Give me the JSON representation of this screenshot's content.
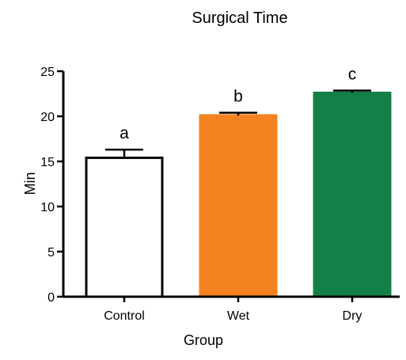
{
  "chart_data": {
    "type": "bar",
    "title": "Surgical Time",
    "xlabel": "Group",
    "ylabel": "Min",
    "categories": [
      "Control",
      "Wet",
      "Dry"
    ],
    "values": [
      15.4,
      20.1,
      22.6
    ],
    "errors": [
      0.9,
      0.3,
      0.25
    ],
    "significance_labels": [
      "a",
      "b",
      "c"
    ],
    "bar_fill_colors": [
      "#ffffff",
      "#f58220",
      "#148048"
    ],
    "bar_stroke_colors": [
      "#000000",
      "#f58220",
      "#148048"
    ],
    "ylim": [
      0,
      25
    ],
    "yticks": [
      "0",
      "5",
      "10",
      "15",
      "20",
      "25"
    ],
    "grid": false,
    "legend": "none"
  }
}
